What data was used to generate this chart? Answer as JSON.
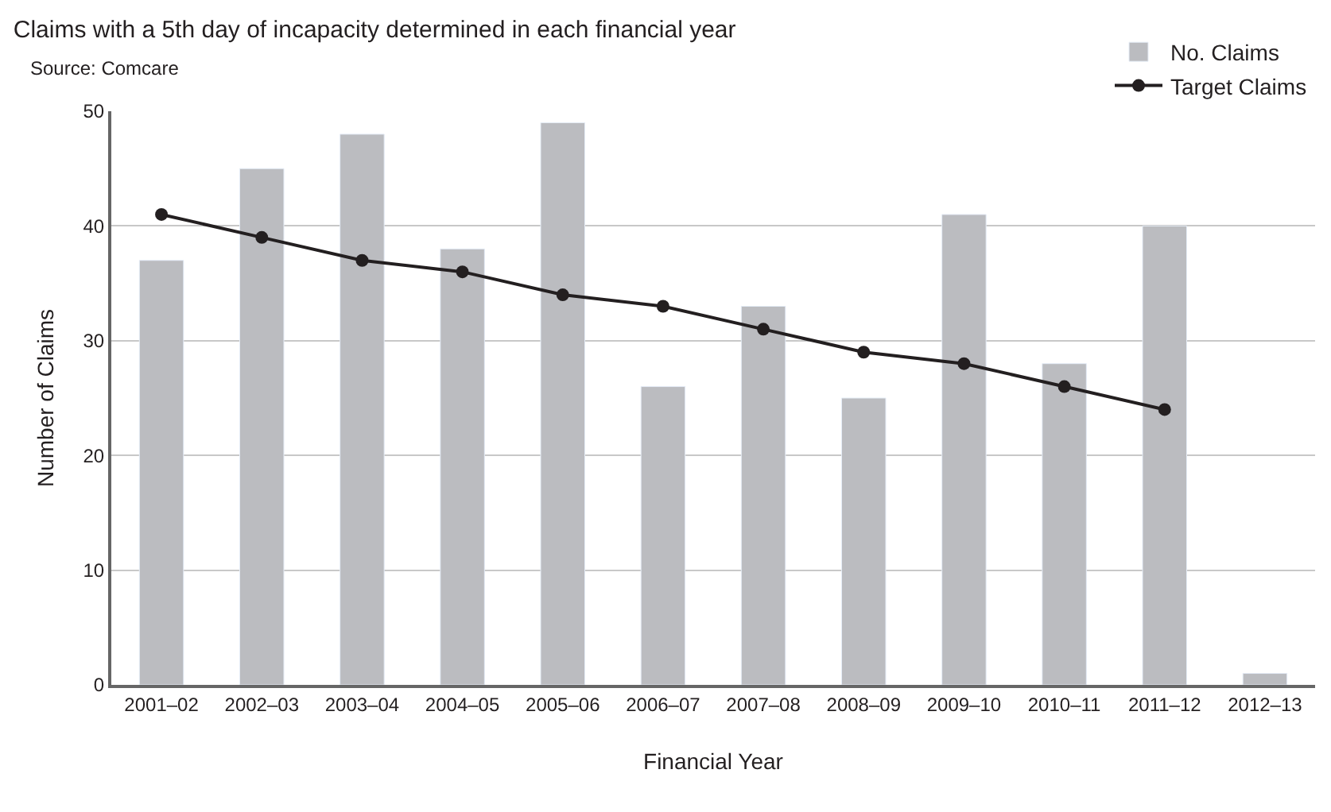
{
  "chart_data": {
    "type": "bar",
    "title": "Claims with a 5th day of incapacity determined in each financial year",
    "annotations": [
      "Source: Comcare"
    ],
    "xlabel": "Financial Year",
    "ylabel": "Number of Claims",
    "categories": [
      "2001–02",
      "2002–03",
      "2003–04",
      "2004–05",
      "2005–06",
      "2006–07",
      "2007–08",
      "2008–09",
      "2009–10",
      "2010–11",
      "2011–12",
      "2012–13"
    ],
    "series": [
      {
        "name": "No. Claims",
        "color": "#bbbcc0",
        "values": [
          37,
          45,
          48,
          38,
          49,
          26,
          33,
          25,
          41,
          28,
          40,
          1
        ]
      },
      {
        "name": "Target Claims",
        "type": "line",
        "color": "#231f20",
        "values": [
          41,
          39,
          37,
          36,
          34,
          33,
          31,
          29,
          28,
          26,
          24,
          null
        ]
      }
    ],
    "ylim": [
      0,
      50
    ],
    "yticks": [
      0,
      10,
      20,
      30,
      40,
      50
    ],
    "grid": "y",
    "legend": "top right",
    "marker": "circle",
    "line_style": "solid"
  }
}
